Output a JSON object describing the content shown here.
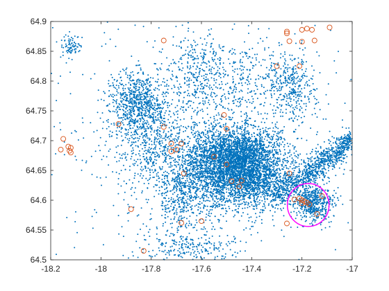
{
  "chart_data": {
    "type": "scatter",
    "title": "",
    "xlabel": "",
    "ylabel": "",
    "xlim": [
      -18.2,
      -17.0
    ],
    "ylim": [
      64.5,
      64.9
    ],
    "x_ticks": [
      -18.2,
      -18,
      -17.8,
      -17.6,
      -17.4,
      -17.2,
      -17
    ],
    "x_tick_labels": [
      "-18.2",
      "-18",
      "-17.8",
      "-17.6",
      "-17.4",
      "-17.2",
      "-17"
    ],
    "y_ticks": [
      64.5,
      64.55,
      64.6,
      64.65,
      64.7,
      64.75,
      64.8,
      64.85,
      64.9
    ],
    "y_tick_labels": [
      "64.5",
      "64.55",
      "64.6",
      "64.65",
      "64.7",
      "64.75",
      "64.8",
      "64.85",
      "64.9"
    ],
    "grid": false,
    "legend": "none",
    "colors": {
      "points": "#0072bd",
      "highlights": "#d95319",
      "ellipse": "#ff00ff",
      "axes": "#262626"
    },
    "point_clusters": [
      {
        "cx": -17.45,
        "cy": 64.67,
        "sx": 0.09,
        "sy": 0.025,
        "n": 2600
      },
      {
        "cx": -17.55,
        "cy": 64.65,
        "sx": 0.12,
        "sy": 0.04,
        "n": 1500
      },
      {
        "cx": -17.4,
        "cy": 64.625,
        "sx": 0.1,
        "sy": 0.018,
        "n": 800
      },
      {
        "cx": -17.85,
        "cy": 64.765,
        "sx": 0.06,
        "sy": 0.025,
        "n": 700
      },
      {
        "cx": -17.82,
        "cy": 64.7,
        "sx": 0.07,
        "sy": 0.04,
        "n": 450
      },
      {
        "cx": -17.5,
        "cy": 64.8,
        "sx": 0.12,
        "sy": 0.04,
        "n": 450
      },
      {
        "cx": -17.25,
        "cy": 64.79,
        "sx": 0.05,
        "sy": 0.03,
        "n": 350
      },
      {
        "cx": -17.15,
        "cy": 64.595,
        "sx": 0.04,
        "sy": 0.015,
        "n": 500
      },
      {
        "cx": -17.65,
        "cy": 64.52,
        "sx": 0.1,
        "sy": 0.015,
        "n": 250
      },
      {
        "cx": -17.68,
        "cy": 64.6,
        "sx": 0.05,
        "sy": 0.03,
        "n": 250
      },
      {
        "cx": -17.62,
        "cy": 64.82,
        "sx": 0.05,
        "sy": 0.04,
        "n": 200
      },
      {
        "cx": -18.12,
        "cy": 64.86,
        "sx": 0.02,
        "sy": 0.01,
        "n": 80
      },
      {
        "cx": -17.6,
        "cy": 64.7,
        "sx": 0.45,
        "sy": 0.12,
        "n": 600
      }
    ],
    "point_band": {
      "x_from": -17.32,
      "y_from": 64.6,
      "x_to": -17.0,
      "y_to": 64.7,
      "spread": 0.012,
      "n": 900
    },
    "highlighted_points": [
      [
        -18.15,
        64.703
      ],
      [
        -18.16,
        64.685
      ],
      [
        -18.13,
        64.69
      ],
      [
        -18.12,
        64.688
      ],
      [
        -18.125,
        64.683
      ],
      [
        -18.12,
        64.68
      ],
      [
        -17.88,
        64.585
      ],
      [
        -17.83,
        64.515
      ],
      [
        -17.93,
        64.728
      ],
      [
        -17.75,
        64.723
      ],
      [
        -17.72,
        64.695
      ],
      [
        -17.7,
        64.685
      ],
      [
        -17.72,
        64.682
      ],
      [
        -17.68,
        64.695
      ],
      [
        -17.67,
        64.645
      ],
      [
        -17.68,
        64.562
      ],
      [
        -17.6,
        64.565
      ],
      [
        -17.75,
        64.868
      ],
      [
        -17.55,
        64.673
      ],
      [
        -17.5,
        64.72
      ],
      [
        -17.51,
        64.743
      ],
      [
        -17.5,
        64.66
      ],
      [
        -17.48,
        64.632
      ],
      [
        -17.45,
        64.623
      ],
      [
        -17.44,
        64.633
      ],
      [
        -17.25,
        64.645
      ],
      [
        -17.26,
        64.561
      ],
      [
        -17.3,
        64.825
      ],
      [
        -17.21,
        64.825
      ],
      [
        -17.26,
        64.88
      ],
      [
        -17.26,
        64.883
      ],
      [
        -17.2,
        64.886
      ],
      [
        -17.18,
        64.888
      ],
      [
        -17.25,
        64.867
      ],
      [
        -17.2,
        64.866
      ],
      [
        -17.15,
        64.868
      ],
      [
        -17.09,
        64.89
      ],
      [
        -17.16,
        64.886
      ],
      [
        -17.23,
        64.601
      ],
      [
        -17.21,
        64.603
      ],
      [
        -17.2,
        64.6
      ],
      [
        -17.19,
        64.598
      ],
      [
        -17.18,
        64.596
      ],
      [
        -17.17,
        64.593
      ],
      [
        -17.2,
        64.595
      ],
      [
        -17.14,
        64.577
      ],
      [
        -17.12,
        64.607
      ]
    ],
    "ellipse": {
      "cx": -17.175,
      "cy": 64.592,
      "rx": 0.083,
      "ry": 0.036
    }
  }
}
